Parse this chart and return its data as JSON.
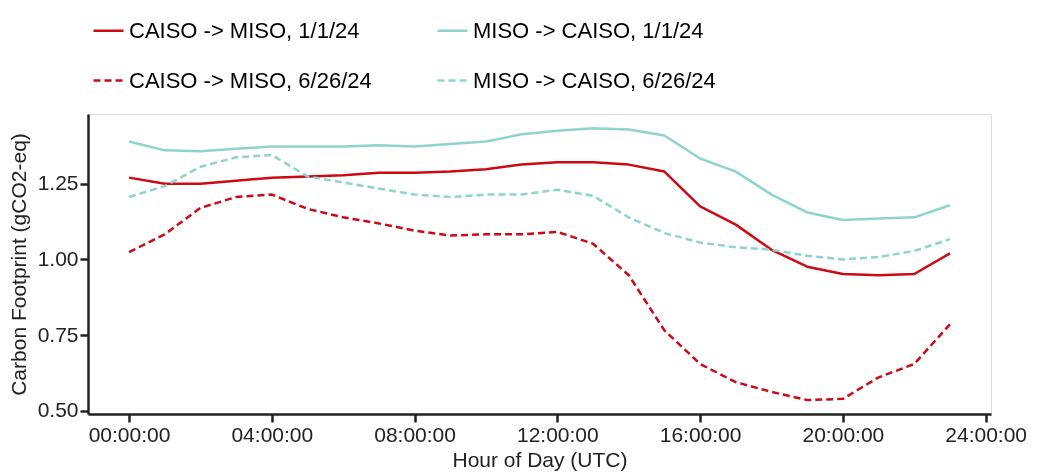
{
  "chart_data": {
    "type": "line",
    "xlabel": "Hour of Day (UTC)",
    "ylabel": "Carbon Footprint (gCO2-eq)",
    "x": [
      0,
      1,
      2,
      3,
      4,
      5,
      6,
      7,
      8,
      9,
      10,
      11,
      12,
      13,
      14,
      15,
      16,
      17,
      18,
      19,
      20,
      21,
      22,
      23
    ],
    "xlim": [
      -1.15,
      24.15
    ],
    "xticks": [
      {
        "value": 0,
        "label": "00:00:00"
      },
      {
        "value": 4,
        "label": "04:00:00"
      },
      {
        "value": 8,
        "label": "08:00:00"
      },
      {
        "value": 12,
        "label": "12:00:00"
      },
      {
        "value": 16,
        "label": "16:00:00"
      },
      {
        "value": 20,
        "label": "20:00:00"
      },
      {
        "value": 24,
        "label": "24:00:00"
      }
    ],
    "ylim": [
      0.49,
      1.48
    ],
    "yticks": [
      {
        "value": 0.5,
        "label": "0.50"
      },
      0.75,
      {
        "value": 1,
        "label": "1.00"
      },
      1.25
    ],
    "grid": false,
    "legend": "top",
    "marker": "none",
    "series": [
      {
        "name": "CAISO -> MISO, 1/1/24",
        "color": "#cc0a14",
        "line_style": "solid",
        "values": [
          1.27,
          1.25,
          1.25,
          1.26,
          1.27,
          1.274,
          1.278,
          1.286,
          1.286,
          1.29,
          1.298,
          1.313,
          1.321,
          1.321,
          1.313,
          1.29,
          1.175,
          1.115,
          1.032,
          0.976,
          0.952,
          0.948,
          0.952,
          1.02
        ]
      },
      {
        "name": "MISO -> CAISO, 1/1/24",
        "color": "#8fd4cc",
        "line_style": "solid",
        "values": [
          1.389,
          1.36,
          1.357,
          1.365,
          1.373,
          1.373,
          1.373,
          1.377,
          1.373,
          1.381,
          1.389,
          1.413,
          1.425,
          1.433,
          1.429,
          1.409,
          1.333,
          1.29,
          1.214,
          1.155,
          1.13,
          1.135,
          1.139,
          1.179
        ]
      },
      {
        "name": "CAISO -> MISO, 6/26/24",
        "color": "#cc0a14",
        "line_style": "dashed",
        "values": [
          1.024,
          1.083,
          1.17,
          1.206,
          1.214,
          1.167,
          1.139,
          1.119,
          1.095,
          1.079,
          1.083,
          1.083,
          1.091,
          1.052,
          0.948,
          0.766,
          0.655,
          0.595,
          0.563,
          0.536,
          0.54,
          0.611,
          0.655,
          0.786
        ]
      },
      {
        "name": "MISO -> CAISO, 6/26/24",
        "color": "#8fd4cc",
        "line_style": "dashed",
        "values": [
          1.206,
          1.242,
          1.306,
          1.337,
          1.345,
          1.274,
          1.254,
          1.234,
          1.214,
          1.206,
          1.214,
          1.214,
          1.23,
          1.21,
          1.139,
          1.087,
          1.056,
          1.04,
          1.032,
          1.012,
          1.0,
          1.008,
          1.028,
          1.067
        ]
      }
    ]
  }
}
